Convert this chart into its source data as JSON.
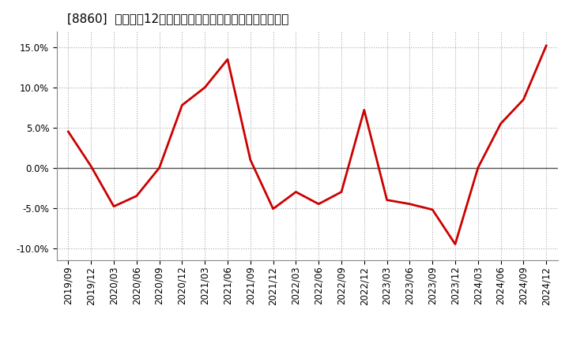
{
  "title": "[8860]  売上高の12か月移動合計の対前年同期増減率の推移",
  "line_color": "#cc0000",
  "background_color": "#ffffff",
  "plot_bg_color": "#ffffff",
  "grid_color": "#aaaaaa",
  "zero_line_color": "#555555",
  "dates": [
    "2019/09",
    "2019/12",
    "2020/03",
    "2020/06",
    "2020/09",
    "2020/12",
    "2021/03",
    "2021/06",
    "2021/09",
    "2021/12",
    "2022/03",
    "2022/06",
    "2022/09",
    "2022/12",
    "2023/03",
    "2023/06",
    "2023/09",
    "2023/12",
    "2024/03",
    "2024/06",
    "2024/09",
    "2024/12"
  ],
  "values": [
    0.045,
    0.002,
    -0.048,
    -0.035,
    0.0,
    0.078,
    0.1,
    0.135,
    0.01,
    -0.051,
    -0.03,
    -0.045,
    -0.03,
    0.072,
    -0.04,
    -0.045,
    -0.052,
    -0.095,
    0.0,
    0.055,
    0.085,
    0.152
  ],
  "ylim": [
    -0.115,
    0.17
  ],
  "yticks": [
    -0.1,
    -0.05,
    0.0,
    0.05,
    0.1,
    0.15
  ],
  "line_width": 2.0,
  "title_fontsize": 11,
  "tick_fontsize": 8.5
}
